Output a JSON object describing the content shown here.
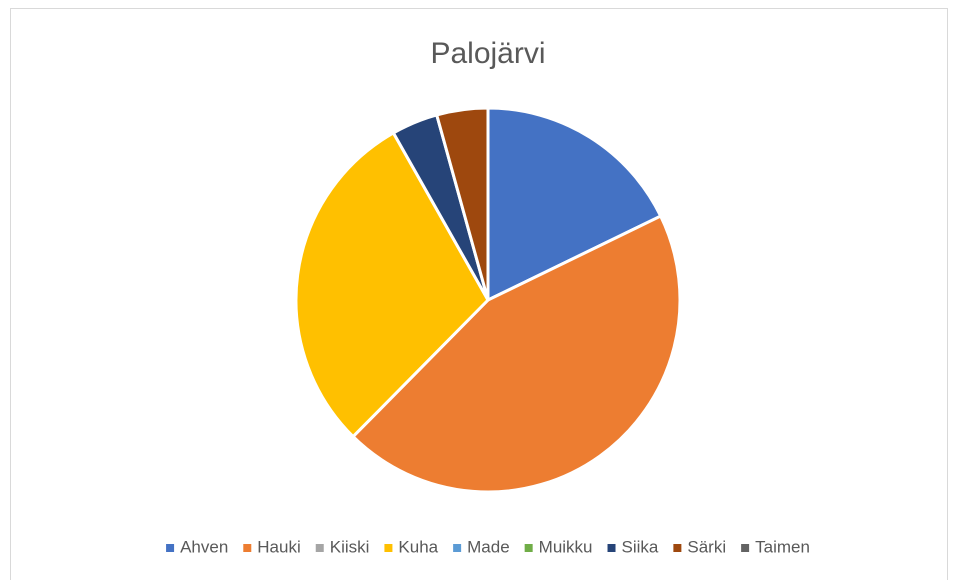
{
  "chart_data": {
    "type": "pie",
    "title": "Palojärvi",
    "categories": [
      "Ahven",
      "Hauki",
      "Kiiski",
      "Kuha",
      "Made",
      "Muikku",
      "Siika",
      "Särki",
      "Taimen"
    ],
    "values": [
      17.8,
      44.6,
      0,
      29.4,
      0,
      0,
      3.9,
      4.3,
      0
    ],
    "colors": [
      "#4472c4",
      "#ed7d31",
      "#a5a5a5",
      "#ffc000",
      "#5b9bd5",
      "#70ad47",
      "#264478",
      "#9e480e",
      "#636363"
    ],
    "legend": "bottom"
  }
}
